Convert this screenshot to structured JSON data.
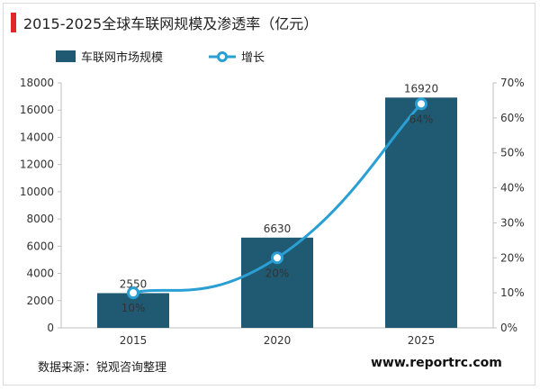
{
  "title": "2015-2025全球车联网规模及渗透率（亿元）",
  "source": "数据来源：锐观咨询整理",
  "website": "www.reportrc.com",
  "colors": {
    "bar": "#1f5a72",
    "line": "#2a9fd4",
    "accent": "#e0282a"
  },
  "chart_data": {
    "type": "bar",
    "categories": [
      "2015",
      "2020",
      "2025"
    ],
    "series": [
      {
        "name": "车联网市场规模",
        "type": "bar",
        "axis": "left",
        "values": [
          2550,
          6630,
          16920
        ],
        "labels": [
          "2550",
          "6630",
          "16920"
        ]
      },
      {
        "name": "增长",
        "type": "line",
        "axis": "right",
        "values": [
          10,
          20,
          64
        ],
        "labels": [
          "10%",
          "20%",
          "64%"
        ]
      }
    ],
    "ylim": [
      0,
      18000
    ],
    "yticks": [
      "0",
      "2000",
      "4000",
      "6000",
      "8000",
      "10000",
      "12000",
      "14000",
      "16000",
      "18000"
    ],
    "y2lim": [
      0,
      70
    ],
    "y2ticks": [
      "0%",
      "10%",
      "20%",
      "30%",
      "40%",
      "50%",
      "60%",
      "70%"
    ],
    "legend": "top-left"
  }
}
